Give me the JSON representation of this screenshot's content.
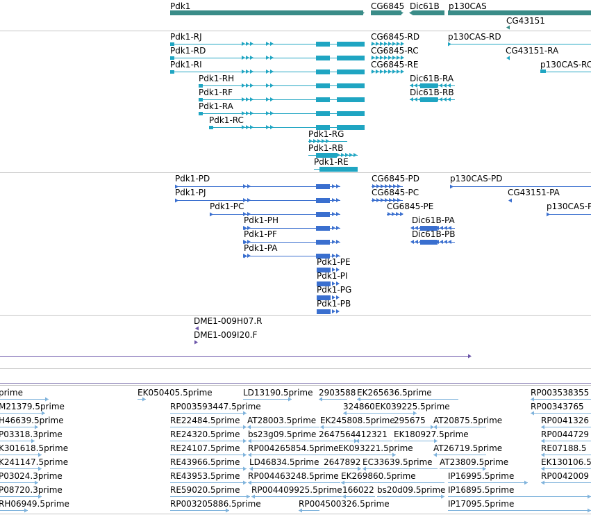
{
  "genes": [
    "Pdk1",
    "CG6845",
    "Dic61B",
    "p130CAS",
    "CG43151"
  ],
  "transcripts_track": [
    "Pdk1-RJ",
    "Pdk1-RD",
    "Pdk1-RI",
    "Pdk1-RH",
    "Pdk1-RF",
    "Pdk1-RA",
    "Pdk1-RC",
    "Pdk1-RG",
    "Pdk1-RB",
    "Pdk1-RE",
    "CG6845-RD",
    "CG6845-RC",
    "CG6845-RE",
    "Dic61B-RA",
    "Dic61B-RB",
    "p130CAS-RD",
    "CG43151-RA",
    "p130CAS-RC"
  ],
  "proteins_track": [
    "Pdk1-PD",
    "Pdk1-PJ",
    "Pdk1-PC",
    "Pdk1-PH",
    "Pdk1-PF",
    "Pdk1-PA",
    "Pdk1-PE",
    "Pdk1-PI",
    "Pdk1-PG",
    "Pdk1-PB",
    "CG6845-PD",
    "CG6845-PC",
    "CG6845-PE",
    "Dic61B-PA",
    "Dic61B-PB",
    "p130CAS-PD",
    "CG43151-PA",
    "p130CAS-P"
  ],
  "clones_track": [
    "DME1-009H07.R",
    "DME1-009I20.F"
  ],
  "est_track": [
    "prime",
    "EK050405.5prime",
    "LD13190.5prime",
    "2903588",
    "EK265636.5prime",
    "RP003538355",
    "M21379.5prime",
    "RP003593447.5prime",
    "324860",
    "EK039225.5prime",
    "RP00343765",
    "H46639.5prime",
    "RE22484.5prime",
    "AT28003.5prime",
    "EK245808.5prime",
    "295675",
    "AT20875.5prime",
    "RP0041326",
    "P03318.3prime",
    "RE24320.5prime",
    "bs23g09.5prime",
    "2647564",
    "412321",
    "EK180927.5prime",
    "RP0044729",
    "K301618.5prime",
    "RE24107.5prime",
    "RP004265854.5prime",
    "EK093221.5prime",
    "AT26719.5prime",
    "RE07188.5",
    "K241147.5prime",
    "RE43966.5prime",
    "LD46834.5prime",
    "2647892",
    "EC33639.5prime",
    "AT23809.5prime",
    "EK130106.5",
    "P03024.3prime",
    "RE43953.5prime",
    "RP004463248.5prime",
    "EK269860.5prime",
    "IP16995.5prime",
    "RP0042009",
    "P08720.3prime",
    "RE59020.5prime",
    "RP004409925.5prime",
    "166022",
    "bs20d09.5prime",
    "IP16895.5prime",
    "RH06949.5prime",
    "RP003205886.5prime",
    "RP004500326.5prime",
    "IP17095.5prime"
  ],
  "colors": {
    "gene": "#3a8c88",
    "transcript": "#1fa5c2",
    "protein": "#3a6fcf",
    "clone": "#6a54a8",
    "est": "#7fb3dc",
    "separator": "#c4c4c4"
  }
}
